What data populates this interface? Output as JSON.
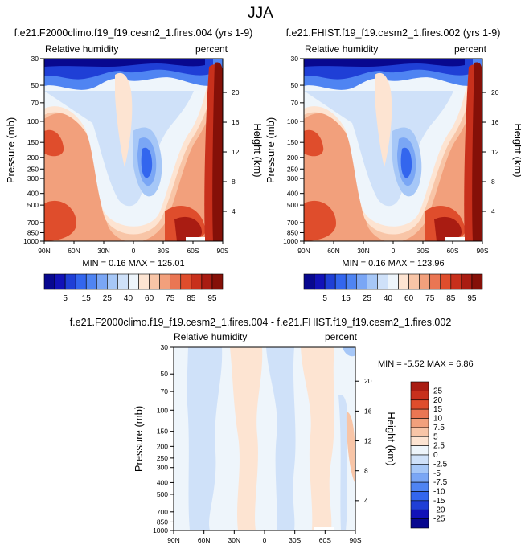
{
  "figure": {
    "title": "JJA"
  },
  "colors": {
    "main_scale": [
      "#08088f",
      "#1212b8",
      "#1f3fd6",
      "#3366ee",
      "#4f84f2",
      "#7aa6f5",
      "#a6c7f7",
      "#cfe1f9",
      "#eef5fb",
      "#fde4d2",
      "#f8c5a7",
      "#f2a07c",
      "#ea7653",
      "#df4d2c",
      "#c8301c",
      "#a91c12",
      "#851008"
    ],
    "diff_scale": [
      "#08088f",
      "#1212b8",
      "#1f3fd6",
      "#3366ee",
      "#4f84f2",
      "#7aa6f5",
      "#a6c7f7",
      "#cfe1f9",
      "#eef5fb",
      "#fde4d2",
      "#f8c5a7",
      "#f2a07c",
      "#ea7653",
      "#df4d2c",
      "#c8301c",
      "#a91c12"
    ]
  },
  "panels": [
    {
      "title": "f.e21.F2000climo.f19_f19.cesm2_1.fires.004 (yrs 1-9)",
      "left_label": "Relative humidity",
      "right_label": "percent",
      "stats": "MIN =  0.16  MAX = 125.01"
    },
    {
      "title": "f.e21.FHIST.f19_f19.cesm2_1.fires.002 (yrs 1-9)",
      "left_label": "Relative humidity",
      "right_label": "percent",
      "stats": "MIN =  0.16  MAX = 123.96"
    },
    {
      "title": "f.e21.F2000climo.f19_f19.cesm2_1.fires.004 - f.e21.FHIST.f19_f19.cesm2_1.fires.002",
      "left_label": "Relative humidity",
      "right_label": "percent",
      "stats": "MIN = -5.52  MAX =  6.86"
    }
  ],
  "chart_data": [
    {
      "type": "heatmap",
      "title": "f.e21.F2000climo.f19_f19.cesm2_1.fires.004 (yrs 1-9)",
      "variable": "Relative humidity",
      "units": "percent",
      "xlabel": "",
      "ylabel": "Pressure (mb)",
      "y2label": "Height (km)",
      "x_ticks": [
        "90N",
        "60N",
        "30N",
        "0",
        "30S",
        "60S",
        "90S"
      ],
      "y_ticks": [
        "30",
        "50",
        "70",
        "100",
        "150",
        "200",
        "250",
        "300",
        "400",
        "500",
        "700",
        "850",
        "1000"
      ],
      "y2_ticks": [
        "4",
        "8",
        "12",
        "16",
        "20"
      ],
      "ylim": [
        1000,
        30
      ],
      "contour_levels": [
        5,
        10,
        15,
        20,
        25,
        30,
        40,
        50,
        60,
        65,
        70,
        75,
        80,
        85,
        90,
        95
      ],
      "min": 0.16,
      "max": 125.01
    },
    {
      "type": "heatmap",
      "title": "f.e21.FHIST.f19_f19.cesm2_1.fires.002 (yrs 1-9)",
      "variable": "Relative humidity",
      "units": "percent",
      "xlabel": "",
      "ylabel": "Pressure (mb)",
      "y2label": "Height (km)",
      "x_ticks": [
        "90N",
        "60N",
        "30N",
        "0",
        "30S",
        "60S",
        "90S"
      ],
      "y_ticks": [
        "30",
        "50",
        "70",
        "100",
        "150",
        "200",
        "250",
        "300",
        "400",
        "500",
        "700",
        "850",
        "1000"
      ],
      "y2_ticks": [
        "4",
        "8",
        "12",
        "16",
        "20"
      ],
      "ylim": [
        1000,
        30
      ],
      "contour_levels": [
        5,
        10,
        15,
        20,
        25,
        30,
        40,
        50,
        60,
        65,
        70,
        75,
        80,
        85,
        90,
        95
      ],
      "min": 0.16,
      "max": 123.96
    },
    {
      "type": "heatmap",
      "title": "f.e21.F2000climo.f19_f19.cesm2_1.fires.004 - f.e21.FHIST.f19_f19.cesm2_1.fires.002",
      "variable": "Relative humidity",
      "units": "percent",
      "xlabel": "",
      "ylabel": "Pressure (mb)",
      "y2label": "Height (km)",
      "x_ticks": [
        "90N",
        "60N",
        "30N",
        "0",
        "30S",
        "60S",
        "90S"
      ],
      "y_ticks": [
        "30",
        "50",
        "70",
        "100",
        "150",
        "200",
        "250",
        "300",
        "400",
        "500",
        "700",
        "850",
        "1000"
      ],
      "y2_ticks": [
        "4",
        "8",
        "12",
        "16",
        "20"
      ],
      "ylim": [
        1000,
        30
      ],
      "contour_levels": [
        -25,
        -20,
        -15,
        -10,
        -7.5,
        -5,
        -2.5,
        0,
        2.5,
        5,
        7.5,
        10,
        15,
        20,
        25
      ],
      "min": -5.52,
      "max": 6.86
    }
  ],
  "colorbars": {
    "main": {
      "labels": [
        "5",
        "15",
        "25",
        "40",
        "60",
        "75",
        "85",
        "95"
      ]
    },
    "diff": {
      "labels": [
        "25",
        "20",
        "15",
        "10",
        "7.5",
        "5",
        "2.5",
        "0",
        "-2.5",
        "-5",
        "-7.5",
        "-10",
        "-15",
        "-20",
        "-25"
      ]
    }
  }
}
